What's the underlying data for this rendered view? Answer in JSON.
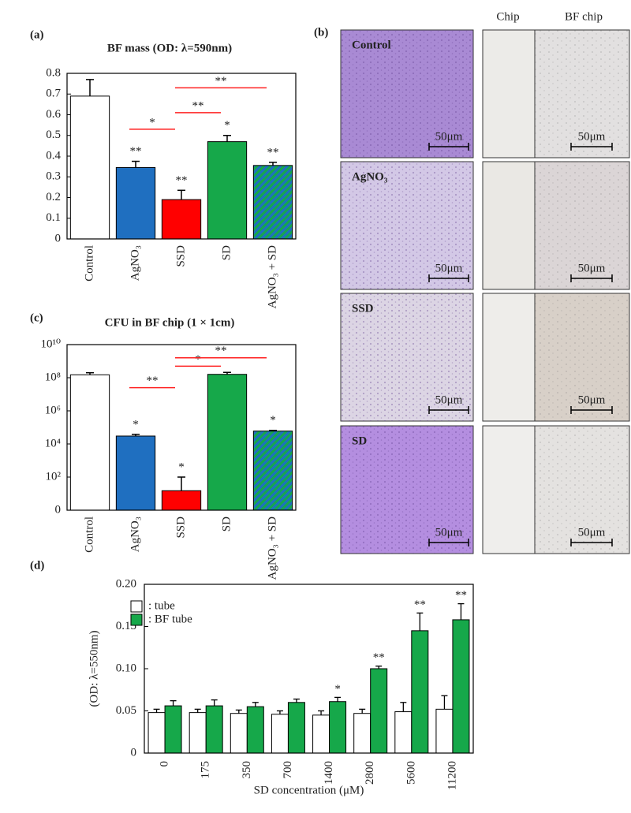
{
  "chart_data": [
    {
      "type": "bar",
      "panel_label": "(a)",
      "title": "BF mass (OD: λ=590nm)",
      "categories": [
        "Control",
        "AgNO₃",
        "SSD",
        "SD",
        "AgNO₃ + SD"
      ],
      "values": [
        0.69,
        0.345,
        0.19,
        0.47,
        0.355
      ],
      "errors": [
        0.08,
        0.03,
        0.045,
        0.03,
        0.015
      ],
      "colors": [
        "#ffffff",
        "#1f6fc0",
        "#ff0000",
        "#16a84a",
        "#1f6fc0"
      ],
      "hatch": [
        null,
        null,
        null,
        null,
        "#16a84a"
      ],
      "label_colors": [
        "#000000",
        "#1f6fc0",
        "#ff0000",
        "#16a84a",
        "#1a8a9a"
      ],
      "bar_annotations": [
        null,
        "**",
        "**",
        "*",
        "**"
      ],
      "brackets": [
        {
          "from": "AgNO₃",
          "to": "SSD",
          "y": 0.53,
          "text": "*"
        },
        {
          "from": "SSD",
          "to": "SD",
          "y": 0.61,
          "text": "**"
        },
        {
          "from": "SSD",
          "to": "AgNO₃ + SD",
          "y": 0.73,
          "text": "**"
        }
      ],
      "ylim": [
        0,
        0.8
      ],
      "yticks": [
        0,
        0.1,
        0.2,
        0.3,
        0.4,
        0.5,
        0.6,
        0.7,
        0.8
      ]
    },
    {
      "type": "bar",
      "panel_label": "(c)",
      "title": "CFU in BF chip (1 × 1cm)",
      "log_scale": true,
      "categories": [
        "Control",
        "AgNO₃",
        "SSD",
        "SD",
        "AgNO₃ + SD"
      ],
      "values": [
        150000000,
        30000,
        15,
        160000000,
        60000
      ],
      "errors": [
        50000000,
        8000,
        85,
        50000000,
        6000
      ],
      "colors": [
        "#ffffff",
        "#1f6fc0",
        "#ff0000",
        "#16a84a",
        "#1f6fc0"
      ],
      "hatch": [
        null,
        null,
        null,
        null,
        "#16a84a"
      ],
      "label_colors": [
        "#000000",
        "#1f6fc0",
        "#ff0000",
        "#16a84a",
        "#1a8a9a"
      ],
      "bar_annotations": [
        null,
        "*",
        "*",
        null,
        "*"
      ],
      "brackets": [
        {
          "from": "AgNO₃",
          "to": "SSD",
          "y": 25000000,
          "text": "**"
        },
        {
          "from": "SSD",
          "to": "SD",
          "y": 500000000,
          "text": "*"
        },
        {
          "from": "SSD",
          "to": "AgNO₃ + SD",
          "y": 1600000000,
          "text": "**"
        }
      ],
      "ylim": [
        1,
        10000000000
      ],
      "yticks": [
        {
          "value": 1,
          "label": "0"
        },
        {
          "value": 100,
          "label": "10²"
        },
        {
          "value": 10000,
          "label": "10⁴"
        },
        {
          "value": 1000000,
          "label": "10⁶"
        },
        {
          "value": 100000000,
          "label": "10⁸"
        },
        {
          "value": 10000000000,
          "label": "10¹⁰"
        }
      ]
    },
    {
      "type": "grouped_bar",
      "panel_label": "(d)",
      "y_label": "(OD: λ=550nm)",
      "x_label": "SD   concentration (μM)",
      "categories": [
        "0",
        "175",
        "350",
        "700",
        "1400",
        "2800",
        "5600",
        "11200"
      ],
      "series": [
        {
          "name": ": tube",
          "color": "#ffffff",
          "values": [
            0.048,
            0.048,
            0.047,
            0.046,
            0.045,
            0.047,
            0.049,
            0.052
          ],
          "errors": [
            0.004,
            0.004,
            0.004,
            0.004,
            0.005,
            0.005,
            0.011,
            0.016
          ]
        },
        {
          "name": ": BF tube",
          "color": "#16a84a",
          "values": [
            0.056,
            0.056,
            0.055,
            0.06,
            0.061,
            0.1,
            0.145,
            0.158
          ],
          "errors": [
            0.006,
            0.007,
            0.005,
            0.004,
            0.005,
            0.003,
            0.021,
            0.019
          ],
          "bar_annotations": [
            null,
            null,
            null,
            null,
            "*",
            "**",
            "**",
            "**"
          ]
        }
      ],
      "ylim": [
        0,
        0.2
      ],
      "yticks": [
        0,
        0.05,
        {
          "value": 0.1,
          "label": "0.10"
        },
        0.15,
        {
          "value": 0.2,
          "label": "0.20"
        }
      ]
    }
  ],
  "micrographs": {
    "panel_label": "(b)",
    "columns": [
      "Chip",
      "BF chip"
    ],
    "rows": [
      {
        "name": "Control",
        "color": "#000000"
      },
      {
        "name": "AgNO₃",
        "color": "#1f6fc0"
      },
      {
        "name": "SSD",
        "color": "#e8141e"
      },
      {
        "name": "SD",
        "color": "#16a84a"
      }
    ],
    "scale_bar": "50μm"
  }
}
